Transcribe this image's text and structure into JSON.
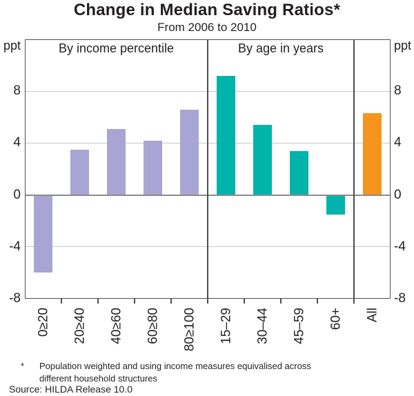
{
  "colors": {
    "purple": "#a8a5d4",
    "teal": "#00b4ac",
    "orange": "#f7941e",
    "frame": "#4d4d4f",
    "gridline": "#c9c9cb",
    "zero_line": "#8a8a8d",
    "text": "#231f20",
    "background": "#ffffff"
  },
  "footnote": {
    "marker": "*",
    "line1": "Population weighted and using income measures equivalised across",
    "line2": "different household structures",
    "source": "Source: HILDA Release 10.0"
  },
  "chart_data": {
    "type": "bar",
    "title": "Change in Median Saving Ratios*",
    "subtitle": "From 2006 to 2010",
    "ylabel": "ppt",
    "ylabel_right": "ppt",
    "ylim": [
      -8,
      12
    ],
    "yticks": [
      8,
      4,
      0,
      -4,
      -8
    ],
    "grid": true,
    "legend": "none",
    "panels": [
      {
        "label": "By income percentile",
        "color": "#a8a5d4",
        "categories": [
          "0≥20",
          "20≥40",
          "40≥60",
          "60≥80",
          "80≥100"
        ],
        "values": [
          -6.0,
          3.5,
          5.1,
          4.2,
          6.6
        ]
      },
      {
        "label": "By age in years",
        "color": "#00b4ac",
        "categories": [
          "15–29",
          "30–44",
          "45–59",
          "60+"
        ],
        "values": [
          9.2,
          5.4,
          3.4,
          -1.5
        ]
      },
      {
        "label": "",
        "color": "#f7941e",
        "categories": [
          "All"
        ],
        "values": [
          6.3
        ]
      }
    ]
  }
}
